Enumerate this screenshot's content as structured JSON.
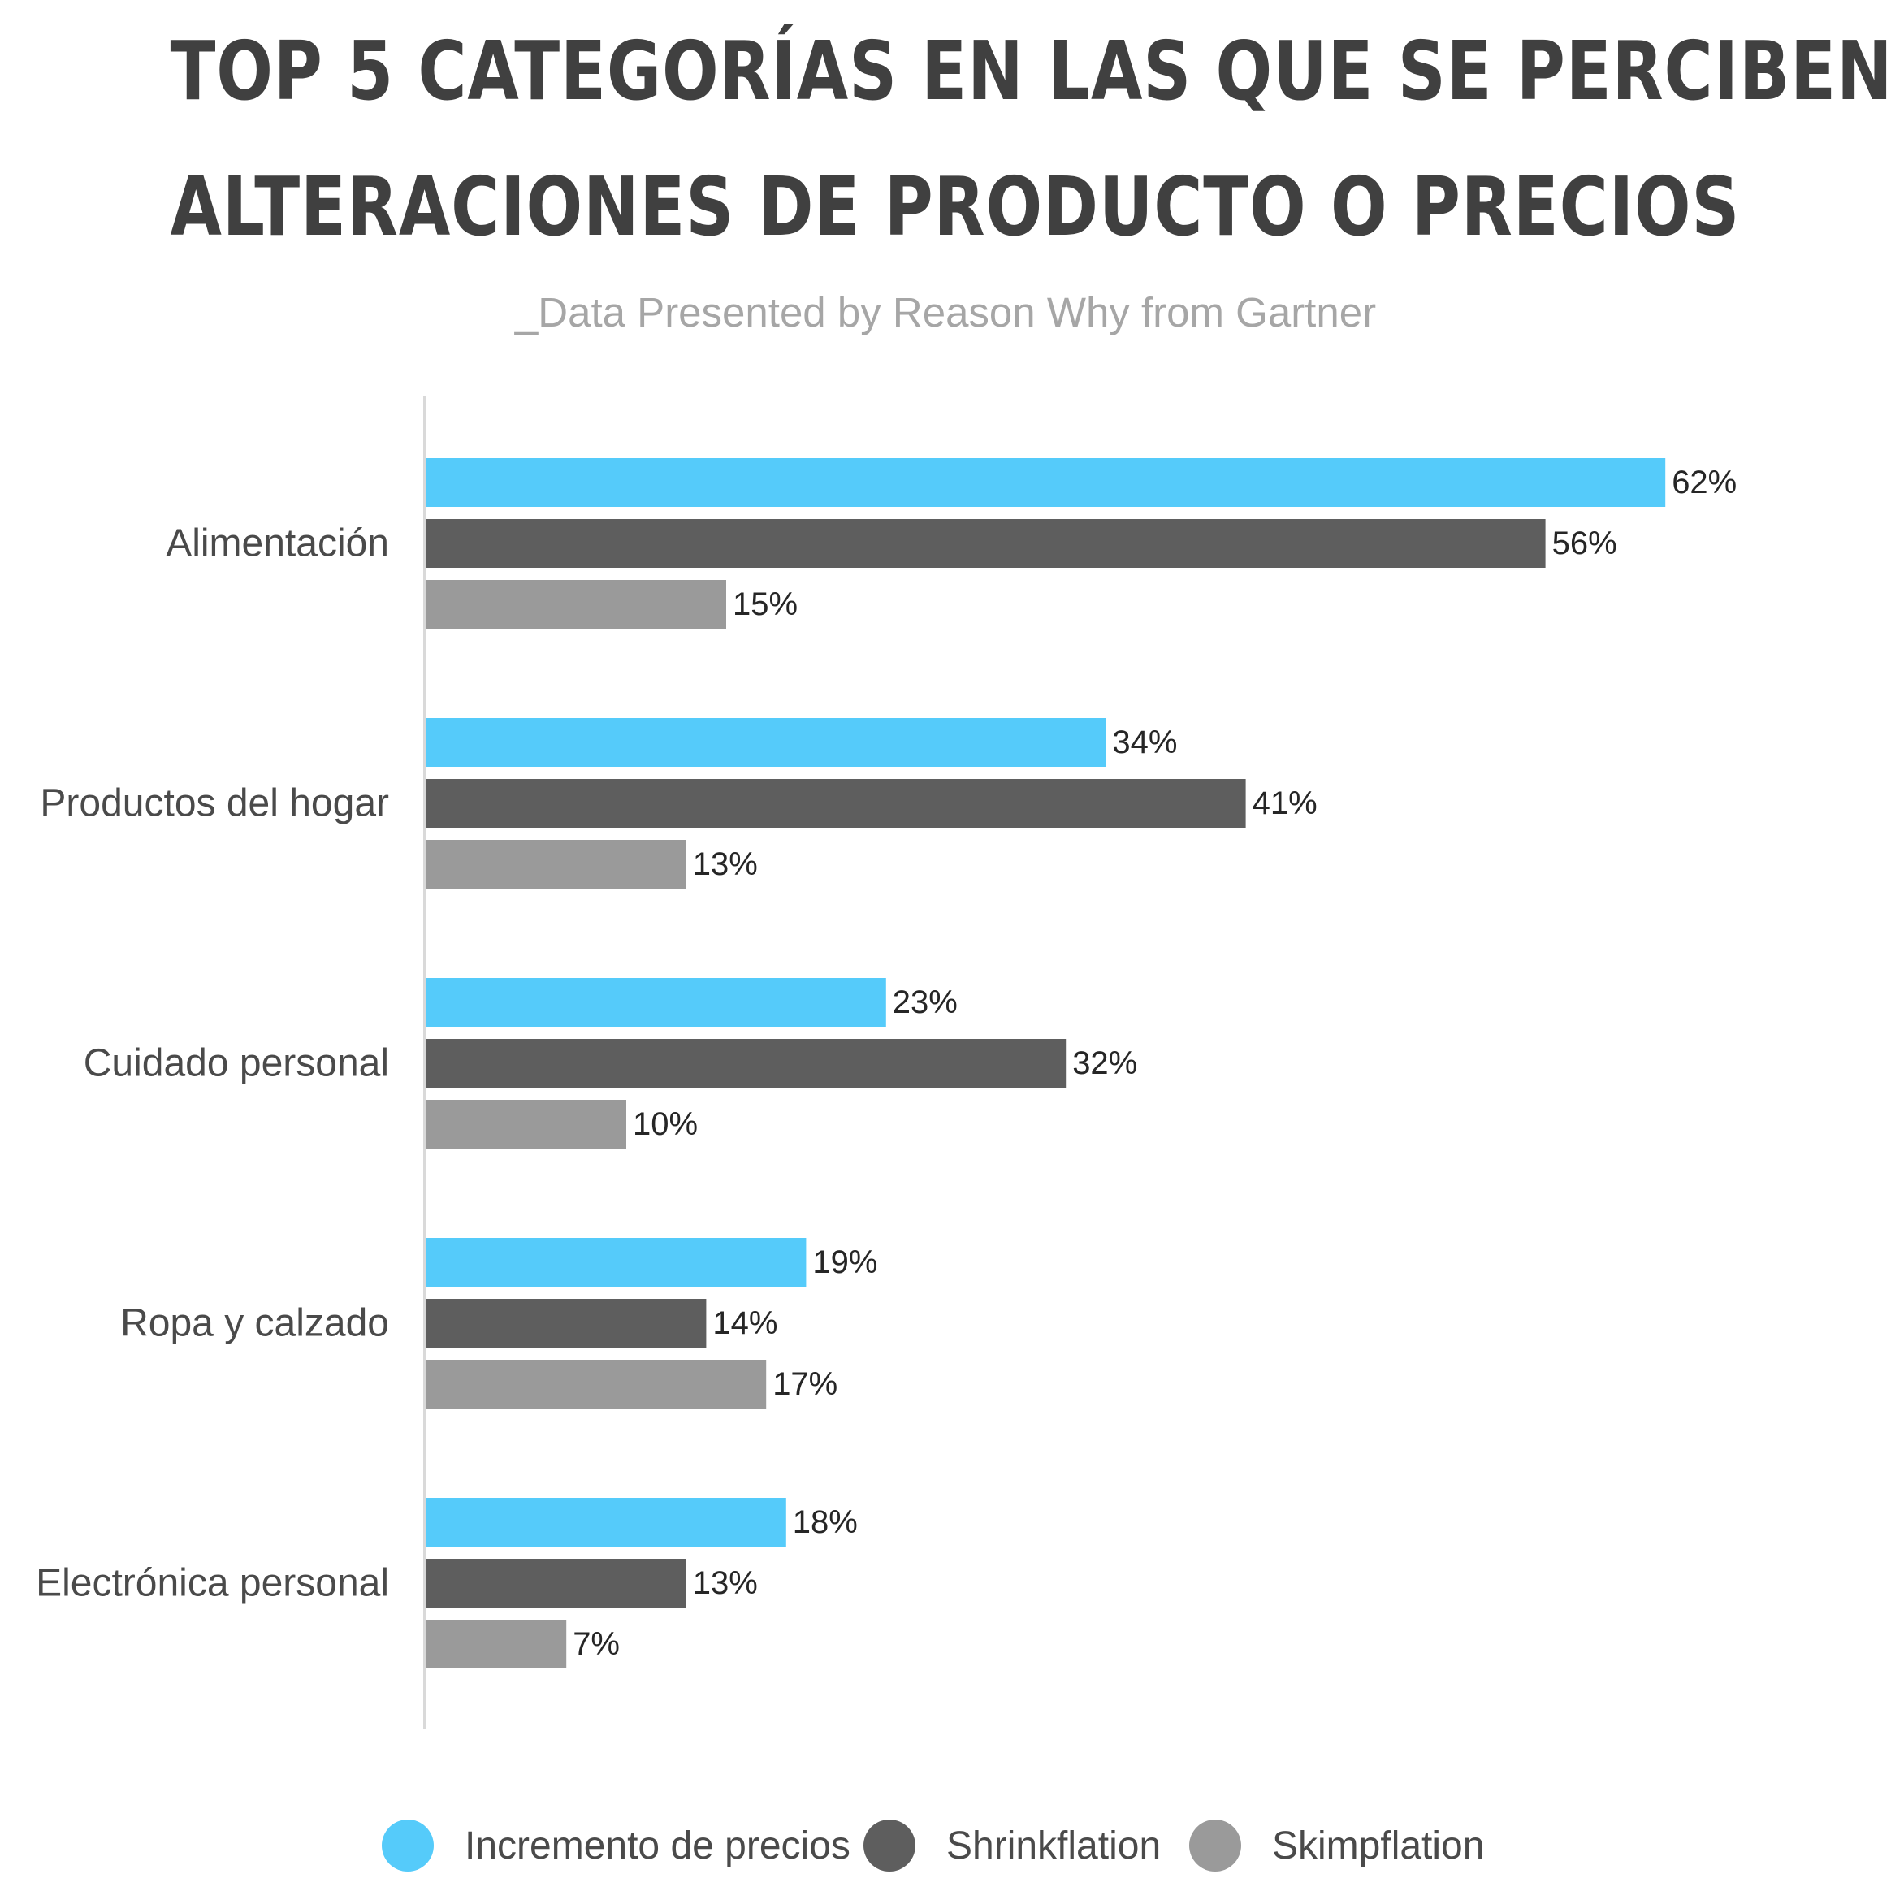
{
  "title_line_1": "TOP 5 CATEGORÍAS EN LAS QUE SE PERCIBEN",
  "title_line_2": "ALTERACIONES DE PRODUCTO O PRECIOS",
  "subtitle": "_Data Presented by Reason Why from Gartner",
  "colors": {
    "incremento": "#55cbfa",
    "shrinkflation": "#5e5e5e",
    "skimpflation": "#9a9a9a",
    "axis": "#d9d9d9"
  },
  "chart_data": {
    "type": "bar",
    "orientation": "horizontal",
    "categories": [
      "Alimentación",
      "Productos del hogar",
      "Cuidado personal",
      "Ropa y calzado",
      "Electrónica personal"
    ],
    "series": [
      {
        "name": "Incremento de precios",
        "values": [
          62,
          34,
          23,
          19,
          18
        ],
        "labels": [
          "62%",
          "34%",
          "23%",
          "19%",
          "18%"
        ]
      },
      {
        "name": "Shrinkflation",
        "values": [
          56,
          41,
          32,
          14,
          13
        ],
        "labels": [
          "56%",
          "41%",
          "32%",
          "14%",
          "13%"
        ]
      },
      {
        "name": "Skimpflation",
        "values": [
          15,
          13,
          10,
          17,
          7
        ],
        "labels": [
          "15%",
          "13%",
          "10%",
          "17%",
          "7%"
        ]
      }
    ],
    "value_unit": "%",
    "xlim": [
      0,
      65
    ],
    "grid": false,
    "legend_position": "bottom"
  },
  "legend": [
    {
      "label": "Incremento de precios",
      "color": "#55cbfa"
    },
    {
      "label": "Shrinkflation",
      "color": "#5e5e5e"
    },
    {
      "label": "Skimpflation",
      "color": "#9a9a9a"
    }
  ]
}
